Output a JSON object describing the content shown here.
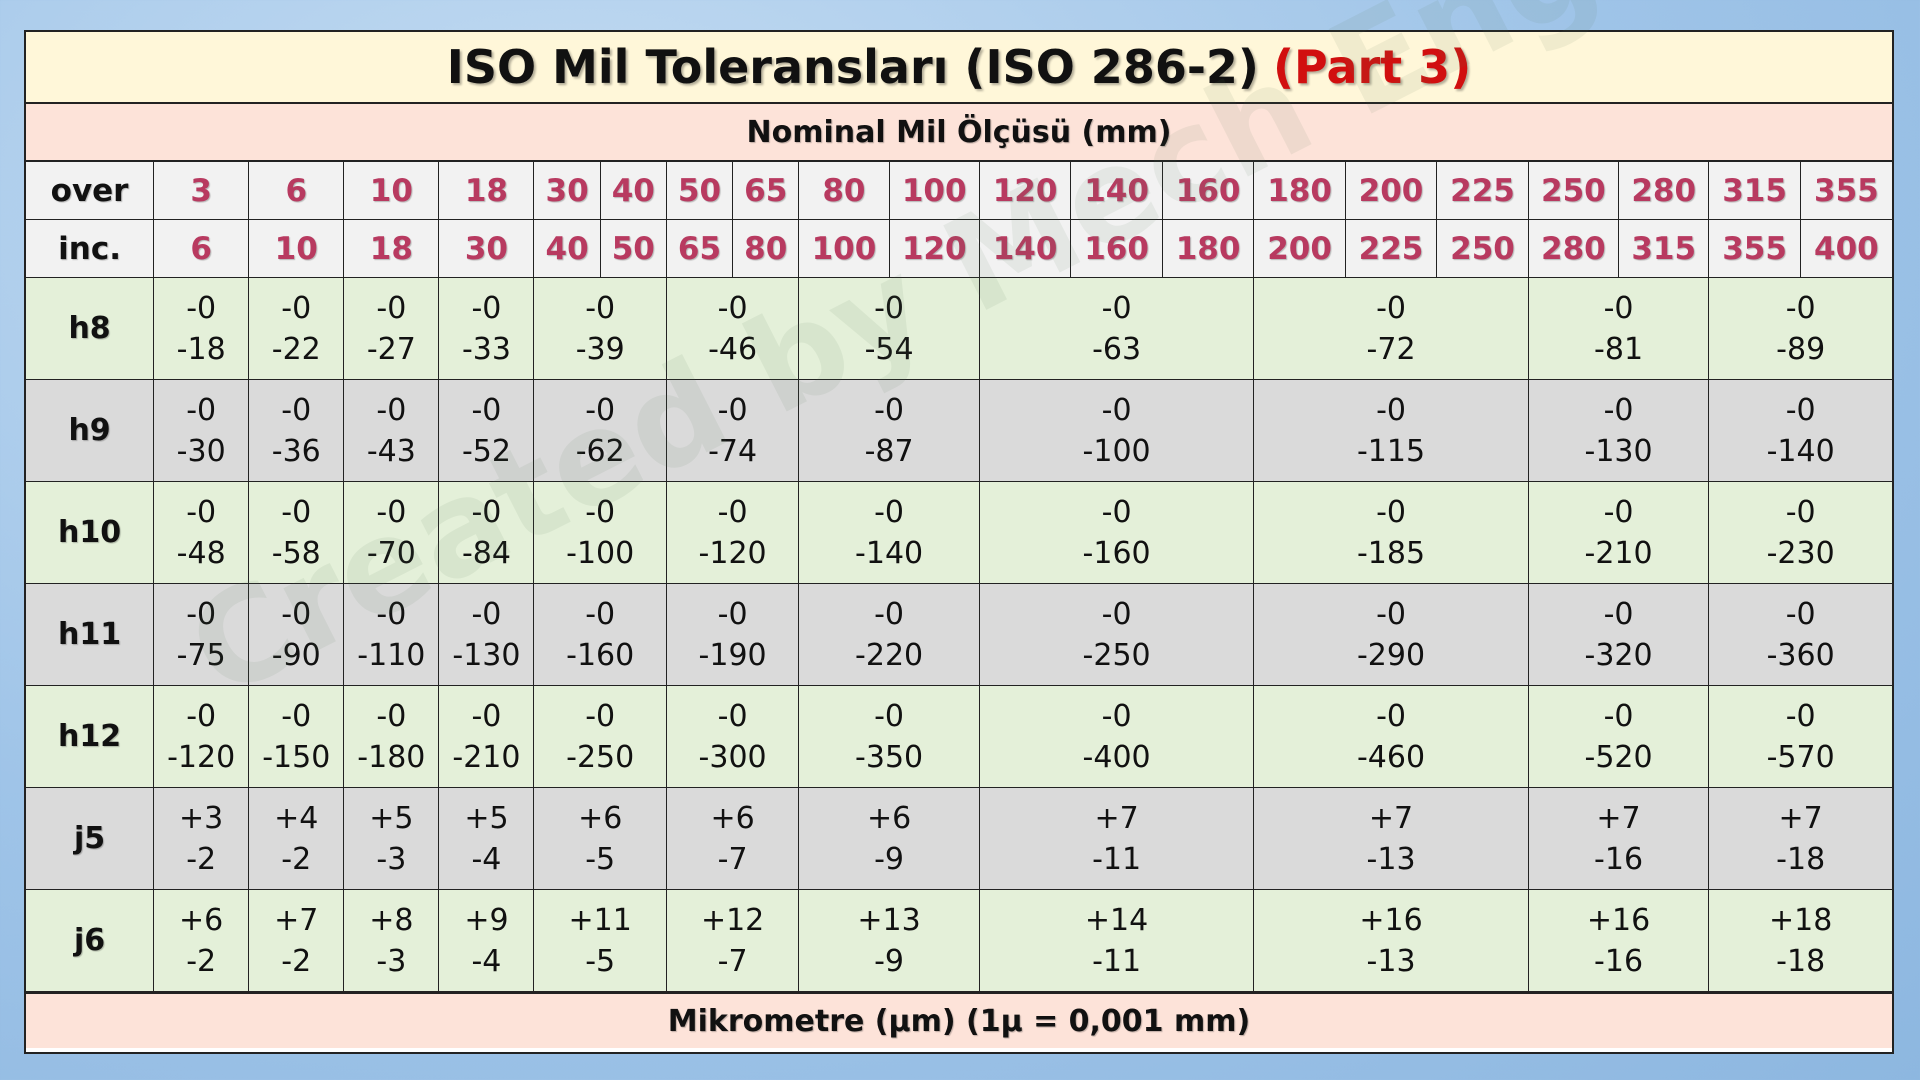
{
  "title": "ISO Mil Toleransları (ISO 286-2)",
  "title_part": "(Part 3)",
  "subtitle": "Nominal Mil Ölçüsü (mm)",
  "footer": "Mikrometre (µm) (1µ = 0,001 mm)",
  "watermark": "Created by Mech Eng Cagri",
  "colors": {
    "header_number": "#b83a60",
    "part_red": "#d10f0f",
    "title_bg": "#fff7d9",
    "sub_bg": "#fde3d9",
    "green_row": "#e4f0d9",
    "gray_row": "#dadada"
  },
  "row_labels": {
    "over": "over",
    "inc": "inc."
  },
  "over": [
    "3",
    "6",
    "10",
    "18",
    "30",
    "40",
    "50",
    "65",
    "80",
    "100",
    "120",
    "140",
    "160",
    "180",
    "200",
    "225",
    "250",
    "280",
    "315",
    "355"
  ],
  "inc": [
    "6",
    "10",
    "18",
    "30",
    "40",
    "50",
    "65",
    "80",
    "100",
    "120",
    "140",
    "160",
    "180",
    "200",
    "225",
    "250",
    "280",
    "315",
    "355",
    "400"
  ],
  "rows": [
    {
      "label": "h8",
      "shade": "green",
      "values": [
        [
          "-0",
          "-18"
        ],
        [
          "-0",
          "-22"
        ],
        [
          "-0",
          "-27"
        ],
        [
          "-0",
          "-33"
        ],
        [
          "-0",
          "-39"
        ],
        [
          "-0",
          "-46"
        ],
        [
          "-0",
          "-54"
        ],
        [
          "-0",
          "-63"
        ],
        [
          "-0",
          "-72"
        ],
        [
          "-0",
          "-81"
        ],
        [
          "-0",
          "-89"
        ]
      ]
    },
    {
      "label": "h9",
      "shade": "gray",
      "values": [
        [
          "-0",
          "-30"
        ],
        [
          "-0",
          "-36"
        ],
        [
          "-0",
          "-43"
        ],
        [
          "-0",
          "-52"
        ],
        [
          "-0",
          "-62"
        ],
        [
          "-0",
          "-74"
        ],
        [
          "-0",
          "-87"
        ],
        [
          "-0",
          "-100"
        ],
        [
          "-0",
          "-115"
        ],
        [
          "-0",
          "-130"
        ],
        [
          "-0",
          "-140"
        ]
      ]
    },
    {
      "label": "h10",
      "shade": "green",
      "values": [
        [
          "-0",
          "-48"
        ],
        [
          "-0",
          "-58"
        ],
        [
          "-0",
          "-70"
        ],
        [
          "-0",
          "-84"
        ],
        [
          "-0",
          "-100"
        ],
        [
          "-0",
          "-120"
        ],
        [
          "-0",
          "-140"
        ],
        [
          "-0",
          "-160"
        ],
        [
          "-0",
          "-185"
        ],
        [
          "-0",
          "-210"
        ],
        [
          "-0",
          "-230"
        ]
      ]
    },
    {
      "label": "h11",
      "shade": "gray",
      "values": [
        [
          "-0",
          "-75"
        ],
        [
          "-0",
          "-90"
        ],
        [
          "-0",
          "-110"
        ],
        [
          "-0",
          "-130"
        ],
        [
          "-0",
          "-160"
        ],
        [
          "-0",
          "-190"
        ],
        [
          "-0",
          "-220"
        ],
        [
          "-0",
          "-250"
        ],
        [
          "-0",
          "-290"
        ],
        [
          "-0",
          "-320"
        ],
        [
          "-0",
          "-360"
        ]
      ]
    },
    {
      "label": "h12",
      "shade": "green",
      "values": [
        [
          "-0",
          "-120"
        ],
        [
          "-0",
          "-150"
        ],
        [
          "-0",
          "-180"
        ],
        [
          "-0",
          "-210"
        ],
        [
          "-0",
          "-250"
        ],
        [
          "-0",
          "-300"
        ],
        [
          "-0",
          "-350"
        ],
        [
          "-0",
          "-400"
        ],
        [
          "-0",
          "-460"
        ],
        [
          "-0",
          "-520"
        ],
        [
          "-0",
          "-570"
        ]
      ]
    },
    {
      "label": "j5",
      "shade": "gray",
      "values": [
        [
          "+3",
          "-2"
        ],
        [
          "+4",
          "-2"
        ],
        [
          "+5",
          "-3"
        ],
        [
          "+5",
          "-4"
        ],
        [
          "+6",
          "-5"
        ],
        [
          "+6",
          "-7"
        ],
        [
          "+6",
          "-9"
        ],
        [
          "+7",
          "-11"
        ],
        [
          "+7",
          "-13"
        ],
        [
          "+7",
          "-16"
        ],
        [
          "+7",
          "-18"
        ]
      ]
    },
    {
      "label": "j6",
      "shade": "green",
      "values": [
        [
          "+6",
          "-2"
        ],
        [
          "+7",
          "-2"
        ],
        [
          "+8",
          "-3"
        ],
        [
          "+9",
          "-4"
        ],
        [
          "+11",
          "-5"
        ],
        [
          "+12",
          "-7"
        ],
        [
          "+13",
          "-9"
        ],
        [
          "+14",
          "-11"
        ],
        [
          "+16",
          "-13"
        ],
        [
          "+16",
          "-16"
        ],
        [
          "+18",
          "-18"
        ]
      ]
    }
  ]
}
